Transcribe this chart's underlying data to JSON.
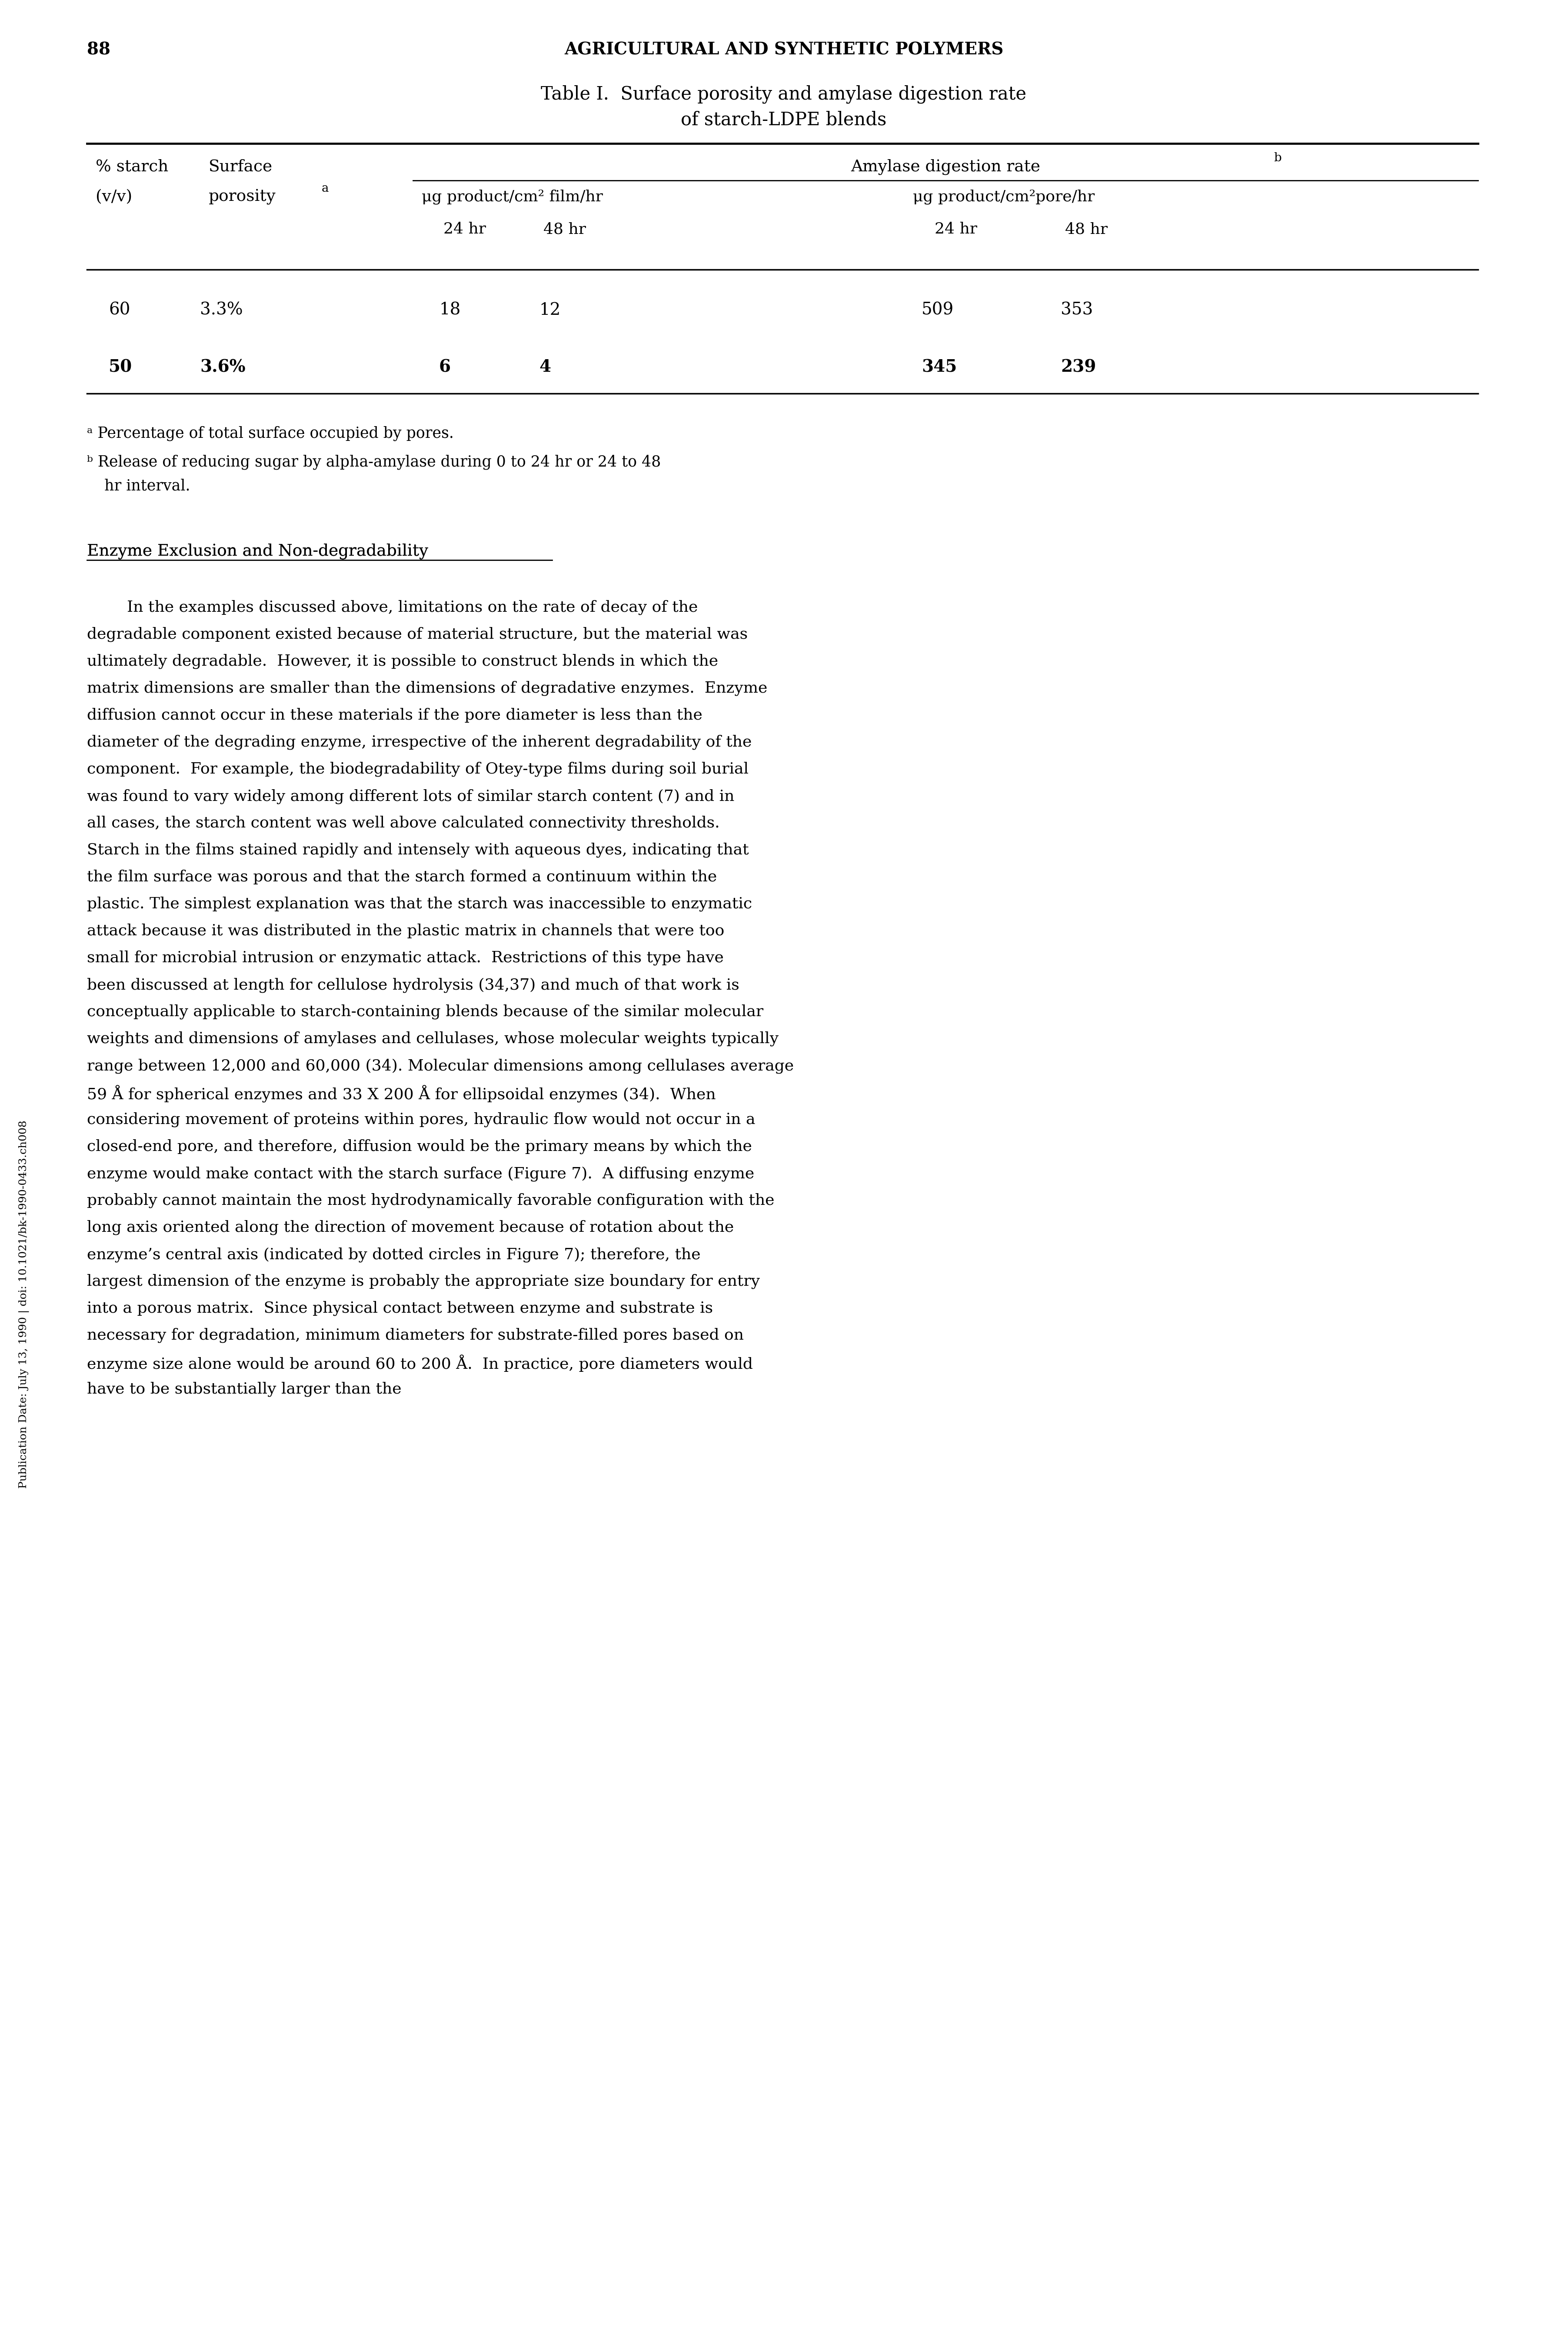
{
  "page_number": "88",
  "header": "AGRICULTURAL AND SYNTHETIC POLYMERS",
  "table_title_line1": "Table I.  Surface porosity and amylase digestion rate",
  "table_title_line2": "of starch-LDPE blends",
  "col_header_row1_c1": "% starch",
  "col_header_row1_c2": "Surface",
  "col_header_row1_c3": "Amylase digestion rate",
  "col_header_row1_c3_super": "b",
  "col_header_row2_c1": "(v/v)",
  "col_header_row2_c2": "porosity",
  "col_header_row2_c2_super": "a",
  "col_header_row2_c3": "μg product/cm² film/hr",
  "col_header_row2_c4": "μg product/cm²pore/hr",
  "col_header_row3_c3a": "24 hr",
  "col_header_row3_c3b": "48 hr",
  "col_header_row3_c4a": "24 hr",
  "col_header_row3_c4b": "48 hr",
  "data_rows": [
    {
      "starch": "60",
      "porosity": "3.3%",
      "film_24": "18",
      "film_48": "12",
      "pore_24": "509",
      "pore_48": "353"
    },
    {
      "starch": "50",
      "porosity": "3.6%",
      "film_24": "6",
      "film_48": "4",
      "pore_24": "345",
      "pore_48": "239"
    }
  ],
  "footnote_a": "Percentage of total surface occupied by pores.",
  "footnote_b_line1": "Release of reducing sugar by alpha-amylase during 0 to 24 hr or 24 to 48",
  "footnote_b_line2": "hr interval.",
  "body_text": [
    "",
    "Enzyme Exclusion and Non-degradability",
    "",
    "        In the examples discussed above, limitations on the rate of decay of the degradable component existed because of material structure, but the material was ultimately degradable.  However, it is possible to construct blends in which the matrix dimensions are smaller than the dimensions of degradative enzymes.  Enzyme diffusion cannot occur in these materials if the pore diameter is less than the diameter of the degrading enzyme, irrespective of the inherent degradability of the component.  For example, the biodegradability of Otey-type films during soil burial was found to vary widely among different lots of similar starch content (7) and in all cases, the starch content was well above calculated connectivity thresholds.  Starch in the films stained rapidly and intensely with aqueous dyes, indicating that the film surface was porous and that the starch formed a continuum within the plastic. The simplest explanation was that the starch was inaccessible to enzymatic attack because it was distributed in the plastic matrix in channels that were too small for microbial intrusion or enzymatic attack.  Restrictions of this type have been discussed at length for cellulose hydrolysis (34,37) and much of that work is conceptually applicable to starch-containing blends because of the similar molecular weights and dimensions of amylases and cellulases, whose molecular weights typically range between 12,000 and 60,000 (34). Molecular dimensions among cellulases average 59 Å for spherical enzymes and 33 X 200 Å for ellipsoidal enzymes (34).  When considering movement of proteins within pores, hydraulic flow would not occur in a closed-end pore, and therefore, diffusion would be the primary means by which the enzyme would make contact with the starch surface (Figure 7).  A diffusing enzyme probably cannot maintain the most hydrodynamically favorable configuration with the long axis oriented along the direction of movement because of rotation about the enzyme’s central axis (indicated by dotted circles in Figure 7); therefore, the largest dimension of the enzyme is probably the appropriate size boundary for entry into a porous matrix.  Since physical contact between enzyme and substrate is necessary for degradation, minimum diameters for substrate-filled pores based on enzyme size alone would be around 60 to 200 Å.  In practice, pore diameters would have to be substantially larger than the"
  ],
  "side_text": "Publication Date: July 13, 1990 | doi: 10.1021/bk-1990-0433.ch008",
  "bg_color": "#ffffff",
  "text_color": "#000000"
}
